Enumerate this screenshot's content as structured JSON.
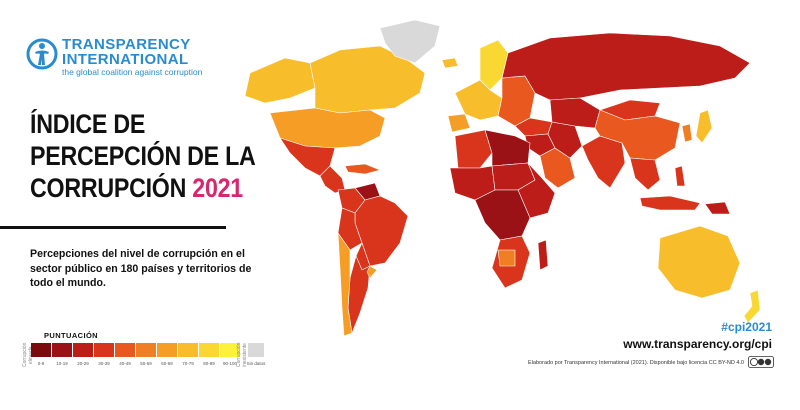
{
  "brand": {
    "name": "TRANSPARENCY\nINTERNATIONAL",
    "tagline": "the global coalition against corruption",
    "color": "#2a8ccf"
  },
  "title": {
    "line1": "ÍNDICE DE",
    "line2": "PERCEPCIÓN DE LA",
    "line3": "CORRUPCIÓN",
    "year": "2021",
    "year_color": "#d7286f"
  },
  "subtitle": "Percepciones del nivel de corrupción en el sector público en 180 países y territorios de todo el mundo.",
  "legend": {
    "title": "PUNTUACIÓN",
    "left_caption": "Corrupción elevada",
    "right_caption": "Corrupción inexistente",
    "bins": [
      {
        "label": "0-9",
        "color": "#7b0a0f"
      },
      {
        "label": "10-19",
        "color": "#9a1116"
      },
      {
        "label": "20-29",
        "color": "#bd1d18"
      },
      {
        "label": "30-39",
        "color": "#d8351c"
      },
      {
        "label": "40-49",
        "color": "#e8581f"
      },
      {
        "label": "50-59",
        "color": "#f07e22"
      },
      {
        "label": "60-69",
        "color": "#f59d25"
      },
      {
        "label": "70-79",
        "color": "#f8bd2a"
      },
      {
        "label": "80-89",
        "color": "#fad834"
      },
      {
        "label": "90-100",
        "color": "#fcf23c"
      }
    ],
    "no_data": {
      "label": "Sin datos",
      "color": "#d9d9d9"
    }
  },
  "footer": {
    "hashtag": "#cpi2021",
    "website": "www.transparency.org/cpi",
    "credit": "Elaborado por Transparency International (2021). Disponible bajo licencia CC BY-ND 4.0"
  },
  "map": {
    "regions": [
      {
        "name": "canada",
        "color": "#f8bd2a"
      },
      {
        "name": "alaska",
        "color": "#f8bd2a"
      },
      {
        "name": "greenland",
        "color": "#d9d9d9"
      },
      {
        "name": "usa",
        "color": "#f59d25"
      },
      {
        "name": "mexico",
        "color": "#d8351c"
      },
      {
        "name": "central-america",
        "color": "#d8351c"
      },
      {
        "name": "caribbean",
        "color": "#e8581f"
      },
      {
        "name": "venezuela",
        "color": "#9a1116"
      },
      {
        "name": "colombia",
        "color": "#d8351c"
      },
      {
        "name": "brazil",
        "color": "#d8351c"
      },
      {
        "name": "peru-bolivia",
        "color": "#d8351c"
      },
      {
        "name": "paraguay",
        "color": "#d8351c"
      },
      {
        "name": "argentina",
        "color": "#d8351c"
      },
      {
        "name": "chile",
        "color": "#f59d25"
      },
      {
        "name": "uruguay",
        "color": "#f59d25"
      },
      {
        "name": "iceland",
        "color": "#f8bd2a"
      },
      {
        "name": "scandinavia",
        "color": "#fad834"
      },
      {
        "name": "western-europe",
        "color": "#f8bd2a"
      },
      {
        "name": "iberia",
        "color": "#f59d25"
      },
      {
        "name": "eastern-europe",
        "color": "#e8581f"
      },
      {
        "name": "russia",
        "color": "#bd1d18"
      },
      {
        "name": "turkey",
        "color": "#d8351c"
      },
      {
        "name": "middle-east",
        "color": "#bd1d18"
      },
      {
        "name": "arabia",
        "color": "#e8581f"
      },
      {
        "name": "iran",
        "color": "#bd1d18"
      },
      {
        "name": "central-asia",
        "color": "#bd1d18"
      },
      {
        "name": "south-asia",
        "color": "#d8351c"
      },
      {
        "name": "china",
        "color": "#e8581f"
      },
      {
        "name": "mongolia",
        "color": "#d8351c"
      },
      {
        "name": "korea",
        "color": "#f07e22"
      },
      {
        "name": "japan",
        "color": "#f8bd2a"
      },
      {
        "name": "southeast-asia",
        "color": "#d8351c"
      },
      {
        "name": "indonesia",
        "color": "#d8351c"
      },
      {
        "name": "philippines",
        "color": "#d8351c"
      },
      {
        "name": "png",
        "color": "#bd1d18"
      },
      {
        "name": "north-africa",
        "color": "#d8351c"
      },
      {
        "name": "libya",
        "color": "#9a1116"
      },
      {
        "name": "west-africa",
        "color": "#bd1d18"
      },
      {
        "name": "sahel",
        "color": "#bd1d18"
      },
      {
        "name": "east-africa",
        "color": "#bd1d18"
      },
      {
        "name": "central-africa",
        "color": "#9a1116"
      },
      {
        "name": "southern-africa",
        "color": "#d8351c"
      },
      {
        "name": "botswana",
        "color": "#f07e22"
      },
      {
        "name": "madagascar",
        "color": "#bd1d18"
      },
      {
        "name": "australia",
        "color": "#f8bd2a"
      },
      {
        "name": "new-zealand",
        "color": "#fad834"
      }
    ]
  }
}
